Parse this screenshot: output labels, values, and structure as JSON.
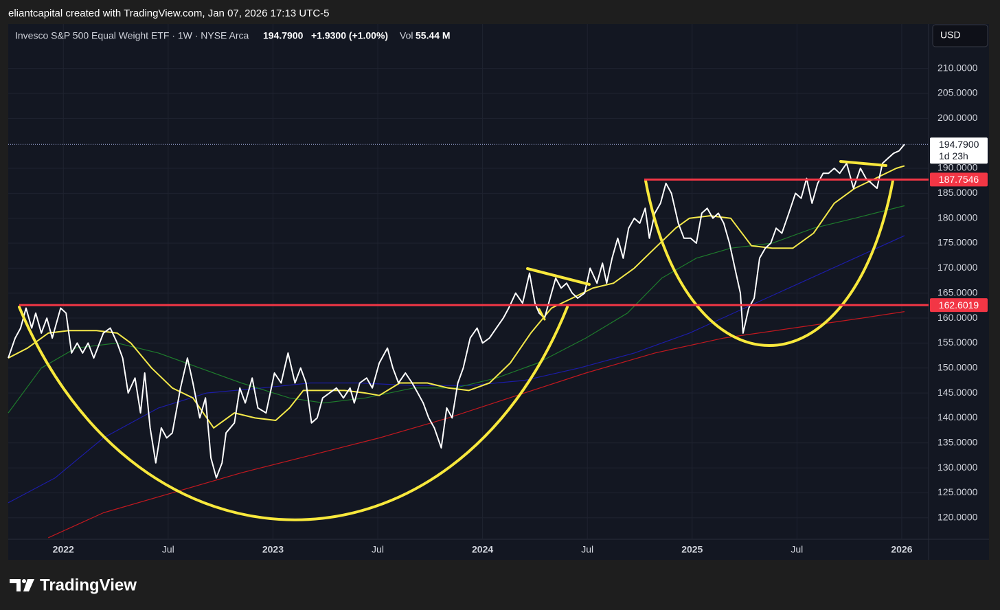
{
  "header": "eliantcapital created with TradingView.com, Jan 07, 2026 17:13 UTC-5",
  "brand": "TradingView",
  "chart_data": {
    "type": "line",
    "title": "Invesco S&P 500 Equal Weight ETF · 1W · NYSE Arca",
    "legend": {
      "price": "194.7900",
      "change": "+1.9300 (+1.00%)",
      "vol_label": "Vol",
      "vol": "55.44 M"
    },
    "currency": "USD",
    "countdown": "1d 23h",
    "last_price": 194.79,
    "last_price_label": "194.7900",
    "last_price_color": "#ffffff",
    "hlines": [
      {
        "value": 162.6019,
        "color": "#f23645"
      },
      {
        "value": 187.7546,
        "color": "#f23645"
      }
    ],
    "xlim": [
      2021.737,
      2026.128
    ],
    "ylim": [
      115.7,
      218.9
    ],
    "grid": true,
    "xticks": [
      {
        "value": 2022,
        "label": "2022"
      },
      {
        "value": 2022.5,
        "label": "Jul"
      },
      {
        "value": 2023,
        "label": "2023"
      },
      {
        "value": 2023.5,
        "label": "Jul"
      },
      {
        "value": 2024,
        "label": "2024"
      },
      {
        "value": 2024.5,
        "label": "Jul"
      },
      {
        "value": 2025,
        "label": "2025"
      },
      {
        "value": 2025.5,
        "label": "Jul"
      },
      {
        "value": 2026,
        "label": "2026"
      }
    ],
    "yticks": [
      {
        "value": 120,
        "label": "120.0000"
      },
      {
        "value": 125,
        "label": "125.0000"
      },
      {
        "value": 130,
        "label": "130.0000"
      },
      {
        "value": 135,
        "label": "135.0000"
      },
      {
        "value": 140,
        "label": "140.0000"
      },
      {
        "value": 145,
        "label": "145.0000"
      },
      {
        "value": 150,
        "label": "150.0000"
      },
      {
        "value": 155,
        "label": "155.0000"
      },
      {
        "value": 160,
        "label": "160.0000"
      },
      {
        "value": 165,
        "label": "165.0000"
      },
      {
        "value": 170,
        "label": "170.0000"
      },
      {
        "value": 175,
        "label": "175.0000"
      },
      {
        "value": 180,
        "label": "180.0000"
      },
      {
        "value": 185,
        "label": "185.0000"
      },
      {
        "value": 190,
        "label": "190.0000"
      },
      {
        "value": 200,
        "label": "200.0000"
      },
      {
        "value": 205,
        "label": "205.0000"
      },
      {
        "value": 210,
        "label": "210.0000"
      }
    ],
    "series": [
      {
        "color": "#c2181f",
        "x": [
          2021.928,
          2022.191,
          2022.52,
          2022.849,
          2023.178,
          2023.507,
          2023.836,
          2024.164,
          2024.493,
          2024.822,
          2025.151,
          2025.48,
          2025.809,
          2026.013
        ],
        "values": [
          116,
          121,
          125,
          129,
          132.5,
          136,
          140,
          144.5,
          149,
          153,
          156,
          158,
          160,
          161.3
        ]
      },
      {
        "color": "#1c1ca8",
        "x": [
          2021.737,
          2021.961,
          2022.191,
          2022.454,
          2022.684,
          2022.947,
          2023.178,
          2023.408,
          2023.671,
          2023.934,
          2024.197,
          2024.461,
          2024.724,
          2024.987,
          2025.25,
          2025.513,
          2025.776,
          2026.013
        ],
        "values": [
          123,
          128,
          136,
          142,
          145,
          146,
          147,
          147,
          146.5,
          146.5,
          147.5,
          150,
          153,
          157,
          162,
          167,
          172,
          176.5
        ]
      },
      {
        "color": "#1e7b2c",
        "x": [
          2021.737,
          2021.895,
          2022.059,
          2022.257,
          2022.454,
          2022.651,
          2022.849,
          2023.079,
          2023.243,
          2023.441,
          2023.671,
          2023.868,
          2024.066,
          2024.263,
          2024.493,
          2024.691,
          2024.855,
          2025.02,
          2025.184,
          2025.382,
          2025.579,
          2025.776,
          2026.013
        ],
        "values": [
          141,
          150,
          154,
          155,
          153,
          150,
          147,
          144,
          143,
          144,
          146,
          146,
          148,
          151,
          156,
          161,
          168,
          172,
          174,
          175,
          178,
          180,
          182.5
        ]
      },
      {
        "color": "#f5e94a",
        "x": [
          2021.737,
          2021.829,
          2021.928,
          2022.026,
          2022.158,
          2022.257,
          2022.322,
          2022.421,
          2022.52,
          2022.618,
          2022.717,
          2022.816,
          2022.914,
          2023.013,
          2023.079,
          2023.145,
          2023.243,
          2023.342,
          2023.441,
          2023.507,
          2023.605,
          2023.737,
          2023.836,
          2023.934,
          2024.033,
          2024.132,
          2024.23,
          2024.329,
          2024.428,
          2024.526,
          2024.625,
          2024.724,
          2024.822,
          2024.921,
          2024.987,
          2025.086,
          2025.184,
          2025.283,
          2025.382,
          2025.48,
          2025.579,
          2025.678,
          2025.776,
          2025.875,
          2025.974,
          2026.013
        ],
        "values": [
          152,
          154,
          157,
          157.5,
          157.5,
          157,
          155,
          150,
          146,
          144,
          138,
          141,
          140,
          139.5,
          142,
          145.5,
          145.5,
          145.5,
          145,
          144.5,
          147,
          147,
          146,
          145.5,
          147,
          151,
          157,
          162,
          164,
          166,
          167,
          170,
          174,
          178,
          180,
          180.5,
          180,
          174.5,
          174,
          174,
          177,
          183,
          186,
          188,
          190,
          190.5
        ]
      },
      {
        "color": "#ffffff",
        "x": [
          2021.737,
          2021.77,
          2021.796,
          2021.822,
          2021.849,
          2021.868,
          2021.895,
          2021.921,
          2021.947,
          2021.987,
          2022.013,
          2022.039,
          2022.066,
          2022.092,
          2022.118,
          2022.145,
          2022.191,
          2022.224,
          2022.257,
          2022.283,
          2022.309,
          2022.342,
          2022.368,
          2022.388,
          2022.414,
          2022.441,
          2022.467,
          2022.493,
          2022.52,
          2022.559,
          2022.592,
          2022.618,
          2022.651,
          2022.678,
          2022.704,
          2022.73,
          2022.757,
          2022.776,
          2022.816,
          2022.842,
          2022.868,
          2022.901,
          2022.928,
          2022.967,
          2023.007,
          2023.039,
          2023.072,
          2023.105,
          2023.132,
          2023.158,
          2023.184,
          2023.211,
          2023.237,
          2023.27,
          2023.303,
          2023.336,
          2023.368,
          2023.388,
          2023.414,
          2023.447,
          2023.474,
          2023.507,
          2023.546,
          2023.572,
          2023.599,
          2023.632,
          2023.664,
          2023.691,
          2023.717,
          2023.743,
          2023.77,
          2023.803,
          2023.829,
          2023.855,
          2023.882,
          2023.908,
          2023.941,
          2023.974,
          2024.0,
          2024.033,
          2024.066,
          2024.099,
          2024.125,
          2024.158,
          2024.191,
          2024.224,
          2024.25,
          2024.27,
          2024.296,
          2024.322,
          2024.349,
          2024.375,
          2024.401,
          2024.428,
          2024.454,
          2024.487,
          2024.513,
          2024.546,
          2024.572,
          2024.592,
          2024.618,
          2024.645,
          2024.671,
          2024.697,
          2024.724,
          2024.75,
          2024.776,
          2024.796,
          2024.822,
          2024.849,
          2024.875,
          2024.901,
          2024.934,
          2024.961,
          2024.993,
          2025.02,
          2025.046,
          2025.072,
          2025.099,
          2025.125,
          2025.151,
          2025.178,
          2025.204,
          2025.23,
          2025.243,
          2025.27,
          2025.296,
          2025.322,
          2025.349,
          2025.375,
          2025.401,
          2025.428,
          2025.461,
          2025.493,
          2025.52,
          2025.546,
          2025.572,
          2025.599,
          2025.625,
          2025.651,
          2025.678,
          2025.704,
          2025.737,
          2025.77,
          2025.803,
          2025.829,
          2025.855,
          2025.882,
          2025.908,
          2025.934,
          2025.961,
          2025.987,
          2026.013
        ],
        "values": [
          152,
          156,
          158,
          162,
          158,
          161,
          157,
          160,
          156,
          162,
          161,
          153,
          155,
          153,
          155,
          152,
          157,
          158,
          155,
          152,
          145,
          148,
          141,
          149,
          138,
          131,
          138,
          136,
          137,
          146,
          152,
          147,
          140,
          144,
          132,
          128,
          131,
          137,
          139,
          146,
          143,
          148,
          142,
          141,
          149,
          147,
          153,
          147,
          150,
          147,
          139,
          140,
          144,
          145,
          146,
          144,
          146,
          143,
          147,
          148,
          146,
          151,
          154,
          150,
          147,
          149,
          147,
          145,
          143,
          140,
          138,
          134,
          142,
          140,
          147,
          150,
          156,
          158,
          155,
          156,
          158,
          160,
          162,
          165,
          163,
          169,
          163,
          161,
          160,
          164,
          168,
          166,
          167,
          165,
          164,
          165,
          170,
          167,
          171,
          167,
          172,
          176,
          172,
          178,
          180,
          179,
          182,
          176,
          181,
          183,
          187,
          185,
          179,
          176,
          176,
          175,
          181,
          182,
          180,
          181,
          179,
          175,
          170,
          165,
          157,
          162,
          164,
          172,
          174,
          175,
          178,
          177,
          181,
          185,
          184,
          188,
          183,
          187,
          189,
          189,
          190,
          189,
          191,
          186,
          190,
          188,
          187,
          186,
          191,
          192,
          193,
          193.5,
          194.79
        ]
      }
    ]
  }
}
